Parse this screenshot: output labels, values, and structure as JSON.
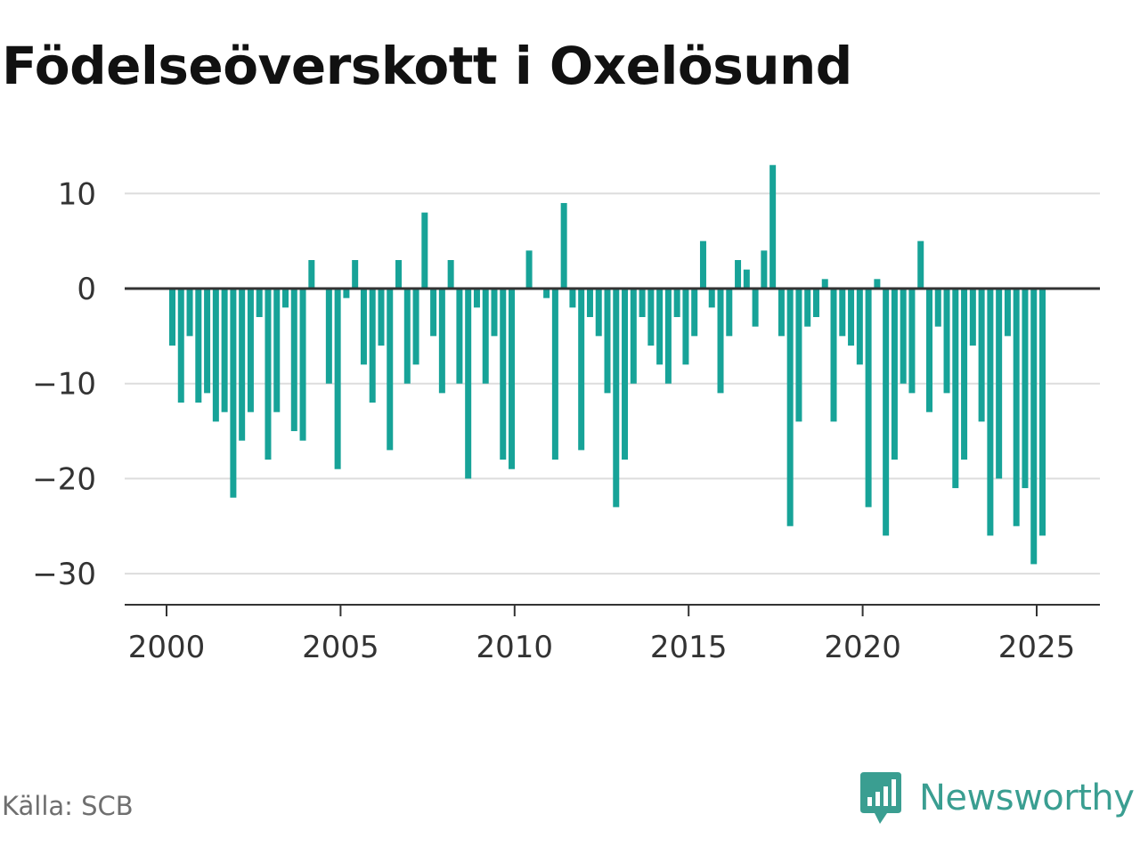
{
  "title": "Födelseöverskott i Oxelösund",
  "source": "Källa: SCB",
  "brand": {
    "name": "Newsworthy",
    "icon": "newsworthy-logo-icon",
    "color": "#3a9e91"
  },
  "colors": {
    "bar": "#17a398",
    "zero_line": "#333333",
    "grid": "#dddddd",
    "axis": "#333333"
  },
  "chart_data": {
    "type": "bar",
    "title": "Födelseöverskott i Oxelösund",
    "xlabel": "",
    "ylabel": "",
    "x_start": "2000 Q1",
    "x_frequency": "quarterly",
    "xticks": [
      2000,
      2005,
      2010,
      2015,
      2020,
      2025
    ],
    "yticks": [
      10,
      0,
      -10,
      -20,
      -30
    ],
    "ytick_labels": [
      "10",
      "0",
      "−10",
      "−20",
      "−30"
    ],
    "ylim": [
      -33.5,
      14
    ],
    "grid": "horizontal",
    "values": [
      -6,
      -12,
      -5,
      -12,
      -11,
      -14,
      -13,
      -22,
      -16,
      -13,
      -3,
      -18,
      -13,
      -2,
      -15,
      -16,
      3,
      0,
      -10,
      -19,
      -1,
      3,
      -8,
      -12,
      -6,
      -17,
      3,
      -10,
      -8,
      8,
      -5,
      -11,
      3,
      -10,
      -20,
      -2,
      -10,
      -5,
      -18,
      -19,
      0,
      4,
      0,
      -1,
      -18,
      9,
      -2,
      -17,
      -3,
      -5,
      -11,
      -23,
      -18,
      -10,
      -3,
      -6,
      -8,
      -10,
      -3,
      -8,
      -5,
      5,
      -2,
      -11,
      -5,
      3,
      2,
      -4,
      4,
      13,
      -5,
      -25,
      -14,
      -4,
      -3,
      1,
      -14,
      -5,
      -6,
      -8,
      -23,
      1,
      -26,
      -18,
      -10,
      -11,
      5,
      -13,
      -4,
      -11,
      -21,
      -18,
      -6,
      -14,
      -26,
      -20,
      -5,
      -25,
      -21,
      -29,
      -26
    ]
  }
}
